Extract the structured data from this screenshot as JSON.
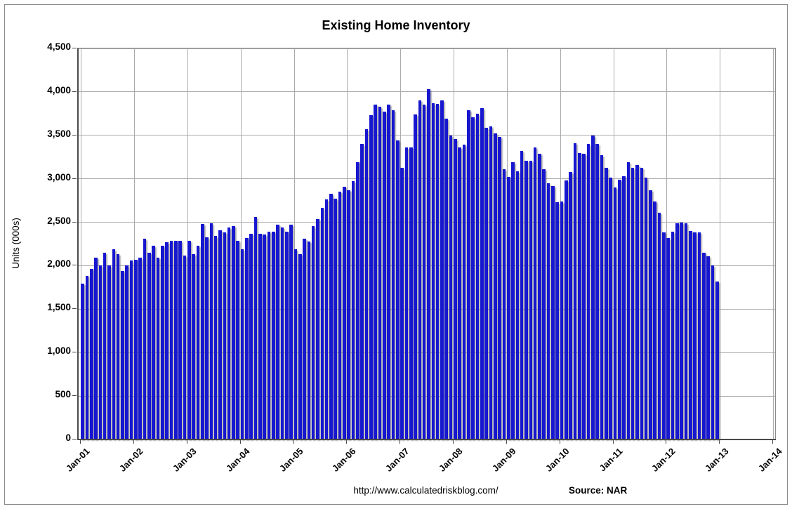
{
  "title": "Existing Home Inventory",
  "footer": {
    "url": "http://www.calculatedriskblog.com/",
    "source_label": "Source: NAR"
  },
  "colors": {
    "bar": "#1717cf",
    "gridline": "#ababab",
    "axis": "#4a4a4a",
    "text": "#000000",
    "background": "#ffffff"
  },
  "chart_data": {
    "type": "bar",
    "title": "Existing Home Inventory",
    "xlabel": "",
    "ylabel": "Units (000s)",
    "ylim": [
      0,
      4500
    ],
    "ytick_step": 500,
    "ytick_labels": [
      "0",
      "500",
      "1,000",
      "1,500",
      "2,000",
      "2,500",
      "3,000",
      "3,500",
      "4,000",
      "4,500"
    ],
    "xtick_labels": [
      "Jan-01",
      "Jan-02",
      "Jan-03",
      "Jan-04",
      "Jan-05",
      "Jan-06",
      "Jan-07",
      "Jan-08",
      "Jan-09",
      "Jan-10",
      "Jan-11",
      "Jan-12",
      "Jan-13",
      "Jan-14"
    ],
    "grid": true,
    "legend_position": "none",
    "frequency": "monthly",
    "start_month": "Jan-01",
    "end_month": "Dec-12",
    "values": [
      1790,
      1880,
      1960,
      2090,
      2000,
      2150,
      2000,
      2190,
      2130,
      1940,
      2000,
      2060,
      2070,
      2090,
      2310,
      2150,
      2230,
      2090,
      2230,
      2270,
      2290,
      2290,
      2290,
      2120,
      2290,
      2130,
      2230,
      2480,
      2330,
      2490,
      2340,
      2410,
      2380,
      2440,
      2460,
      2290,
      2190,
      2320,
      2370,
      2560,
      2370,
      2360,
      2390,
      2390,
      2470,
      2440,
      2390,
      2470,
      2190,
      2130,
      2310,
      2280,
      2460,
      2540,
      2670,
      2760,
      2830,
      2770,
      2850,
      2910,
      2870,
      2970,
      3190,
      3400,
      3570,
      3730,
      3850,
      3830,
      3770,
      3850,
      3790,
      3440,
      3130,
      3360,
      3360,
      3740,
      3900,
      3850,
      4030,
      3870,
      3860,
      3900,
      3690,
      3500,
      3460,
      3360,
      3390,
      3790,
      3710,
      3750,
      3810,
      3590,
      3600,
      3520,
      3480,
      3110,
      3020,
      3190,
      3090,
      3320,
      3210,
      3210,
      3360,
      3290,
      3110,
      2950,
      2920,
      2730,
      2740,
      2980,
      3080,
      3410,
      3300,
      3290,
      3400,
      3500,
      3400,
      3270,
      3130,
      3010,
      2900,
      2990,
      3030,
      3190,
      3130,
      3160,
      3130,
      3010,
      2870,
      2740,
      2610,
      2380,
      2320,
      2390,
      2490,
      2500,
      2490,
      2400,
      2380,
      2380,
      2150,
      2110,
      2000,
      1820
    ]
  }
}
